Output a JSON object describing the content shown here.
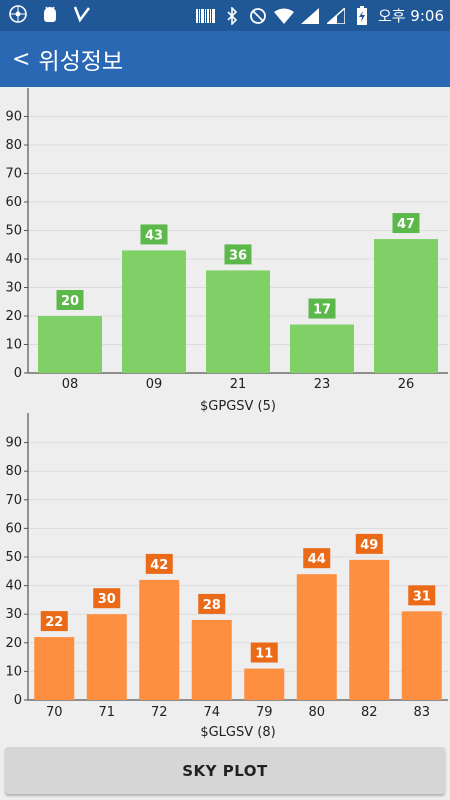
{
  "status_bar": {
    "left_icons": [
      "app-icon",
      "android-debug-icon",
      "checkmark-app-icon"
    ],
    "right_icons": [
      "barcode-icon",
      "bluetooth-icon",
      "do-not-disturb-icon",
      "wifi-icon",
      "signal-icon",
      "signal-icon-2",
      "battery-charging-icon"
    ],
    "time": "오후 9:06"
  },
  "app_bar": {
    "back_label": "<",
    "title": "위성정보"
  },
  "charts": [
    {
      "chart_data": {
        "type": "bar",
        "categories": [
          "08",
          "09",
          "21",
          "23",
          "26"
        ],
        "values": [
          20,
          43,
          36,
          17,
          47
        ],
        "xlabel": "$GPGSV (5)",
        "ylabel": "",
        "ylim": [
          0,
          100
        ],
        "yticks": [
          0,
          10,
          20,
          30,
          40,
          50,
          60,
          70,
          80,
          90
        ],
        "bar_color": "#7fd066",
        "label_bg": "#5cb84a",
        "grid": true
      }
    },
    {
      "chart_data": {
        "type": "bar",
        "categories": [
          "70",
          "71",
          "72",
          "74",
          "79",
          "80",
          "82",
          "83"
        ],
        "values": [
          22,
          30,
          42,
          28,
          11,
          44,
          49,
          31
        ],
        "xlabel": "$GLGSV (8)",
        "ylabel": "",
        "ylim": [
          0,
          100
        ],
        "yticks": [
          0,
          10,
          20,
          30,
          40,
          50,
          60,
          70,
          80,
          90
        ],
        "bar_color": "#ff8f40",
        "label_bg": "#ea6a18",
        "grid": true
      }
    }
  ],
  "sky_plot_button": {
    "label": "SKY PLOT"
  }
}
